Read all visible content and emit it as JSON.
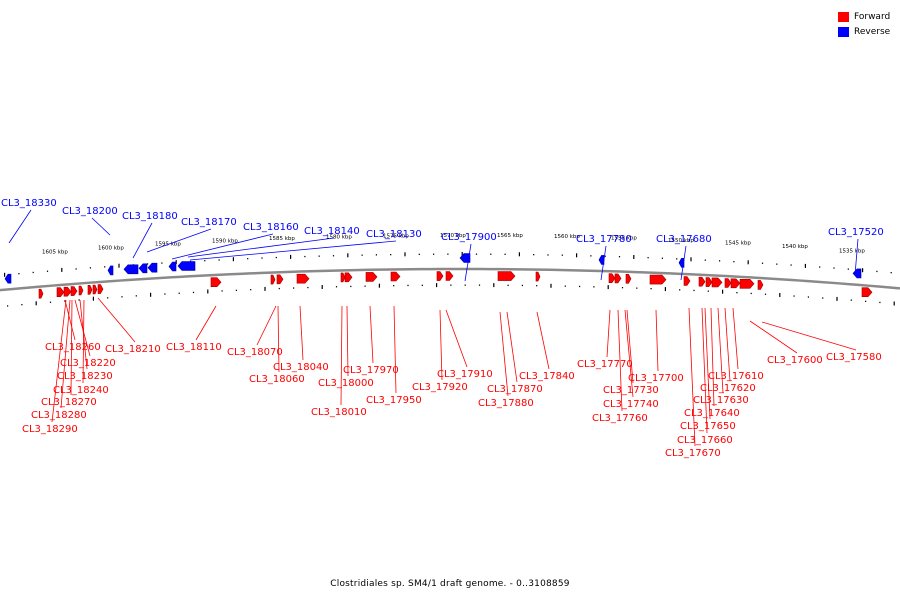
{
  "legend": {
    "forward_label": "Forward",
    "reverse_label": "Reverse",
    "forward_color": "#ff0000",
    "reverse_color": "#0000ff"
  },
  "caption": "Clostridiales sp. SM4/1 draft genome. - 0..3108859",
  "scale_labels": [
    "1605 kbp",
    "1600 kbp",
    "1595 kbp",
    "1590 kbp",
    "1585 kbp",
    "1580 kbp",
    "1575 kbp",
    "1570 kbp",
    "1565 kbp",
    "1560 kbp",
    "1555 kbp",
    "1550 kbp",
    "1545 kbp",
    "1540 kbp",
    "1535 kbp"
  ],
  "reverse_genes": [
    "CL3_18330",
    "CL3_18200",
    "CL3_18180",
    "CL3_18170",
    "CL3_18160",
    "CL3_18140",
    "CL3_18130",
    "CL3_17900",
    "CL3_17780",
    "CL3_17680",
    "CL3_17520"
  ],
  "forward_genes": [
    "CL3_18260",
    "CL3_18210",
    "CL3_18220",
    "CL3_18230",
    "CL3_18240",
    "CL3_18270",
    "CL3_18280",
    "CL3_18290",
    "CL3_18110",
    "CL3_18070",
    "CL3_18040",
    "CL3_18060",
    "CL3_17970",
    "CL3_18000",
    "CL3_18010",
    "CL3_17950",
    "CL3_17910",
    "CL3_17920",
    "CL3_17870",
    "CL3_17880",
    "CL3_17840",
    "CL3_17770",
    "CL3_17730",
    "CL3_17740",
    "CL3_17760",
    "CL3_17700",
    "CL3_17610",
    "CL3_17620",
    "CL3_17630",
    "CL3_17640",
    "CL3_17650",
    "CL3_17660",
    "CL3_17670",
    "CL3_17600",
    "CL3_17580"
  ]
}
